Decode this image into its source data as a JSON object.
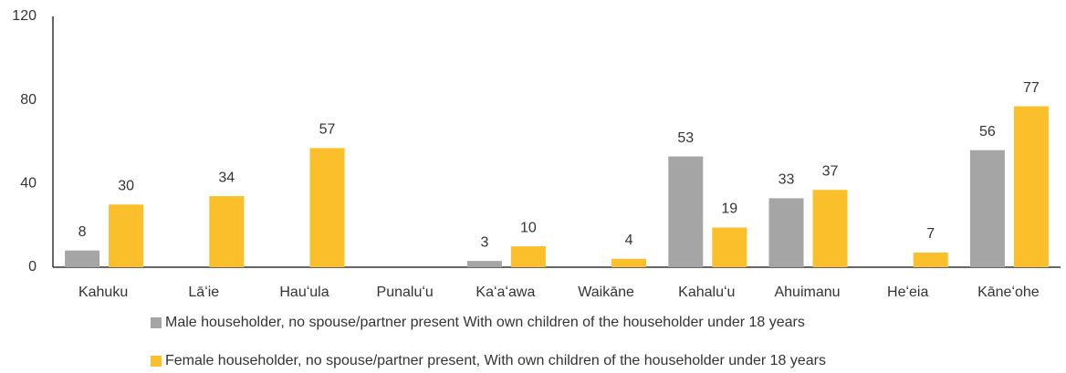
{
  "chart_data": {
    "type": "bar",
    "categories": [
      "Kahuku",
      "Lāʻie",
      "Hauʻula",
      "Punaluʻu",
      "Kaʻaʻawa",
      "Waikāne",
      "Kahaluʻu",
      "Ahuimanu",
      "Heʻeia",
      "Kāneʻohe"
    ],
    "series": [
      {
        "name": "Male householder, no spouse/partner present With own children of the householder under 18 years",
        "color": "#a5a5a5",
        "values": [
          8,
          null,
          null,
          null,
          3,
          null,
          53,
          33,
          null,
          56
        ]
      },
      {
        "name": "Female householder, no spouse/partner present, With own children of the householder under 18 years",
        "color": "#fbbf2c",
        "values": [
          30,
          34,
          57,
          null,
          10,
          4,
          19,
          37,
          7,
          77
        ]
      }
    ],
    "ylim": [
      0,
      120
    ],
    "yticks": [
      0,
      40,
      80,
      120
    ],
    "grid": false
  }
}
